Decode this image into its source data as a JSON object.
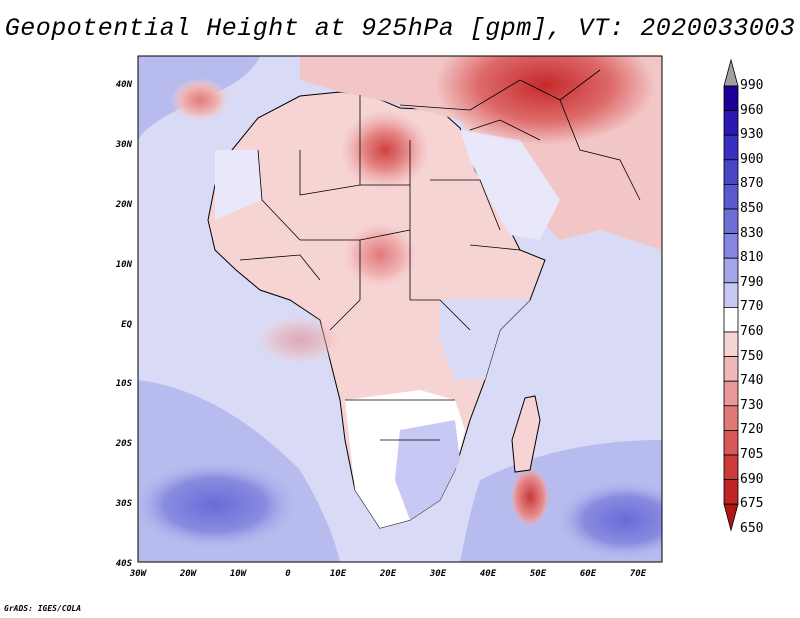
{
  "title": "Geopotential Height at 925hPa [gpm], VT: 2020033003",
  "x_axis_labels": [
    "30W",
    "20W",
    "10W",
    "0",
    "10E",
    "20E",
    "30E",
    "40E",
    "50E",
    "60E",
    "70E"
  ],
  "y_axis_labels": [
    "40N",
    "30N",
    "20N",
    "10N",
    "EQ",
    "10S",
    "20S",
    "30S",
    "40S"
  ],
  "colorbar": {
    "labels": [
      "990",
      "960",
      "930",
      "900",
      "870",
      "850",
      "830",
      "810",
      "790",
      "770",
      "760",
      "750",
      "740",
      "730",
      "720",
      "705",
      "690",
      "675",
      "650"
    ],
    "colors": [
      "#a0a0a0",
      "#1e0096",
      "#2a18b0",
      "#3a30c0",
      "#4a46c8",
      "#5a5ad0",
      "#6e6ed8",
      "#8686e0",
      "#a4a4ea",
      "#c8c8f4",
      "#ffffff",
      "#f6d4d4",
      "#f0b8b8",
      "#e89898",
      "#e07878",
      "#d85858",
      "#cc3a3a",
      "#c02424",
      "#b01818"
    ]
  },
  "credit": "GrADS: IGES/COLA",
  "colors": {
    "ocean_light": "#d8daf6",
    "ocean_mid": "#b8bbee",
    "ocean_deep": "#8c8ee0",
    "land_warm": "#f2c6c6",
    "land_hot": "#d84848",
    "border": "#000000"
  }
}
